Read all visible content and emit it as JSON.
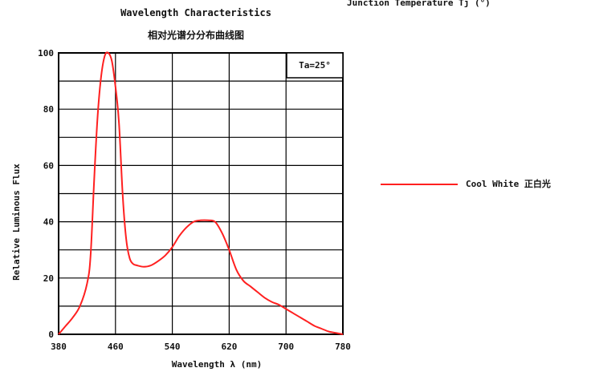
{
  "header_fragment": "Junction Temperature Tj (°)",
  "chart_data": {
    "type": "line",
    "title": "Wavelength Characteristics",
    "subtitle": "相对光谱分分布曲线图",
    "xlabel": "Wavelength λ (nm)",
    "ylabel": "Relative Luminous Flux",
    "x_tick_labels": [
      "380",
      "460",
      "540",
      "620",
      "700",
      "780"
    ],
    "y_ticks": [
      0,
      20,
      40,
      60,
      80,
      100
    ],
    "y_tick_labels": [
      "0",
      "20",
      "40",
      "60",
      "80",
      "100"
    ],
    "xlim": [
      380,
      780
    ],
    "ylim": [
      0,
      100
    ],
    "grid": true,
    "annotation": "Ta=25°",
    "legend_position": "right",
    "series": [
      {
        "name": "Cool White 正白光",
        "color": "#ff2020",
        "x": [
          380,
          390,
          400,
          410,
          420,
          425,
          430,
          435,
          440,
          445,
          450,
          455,
          460,
          465,
          470,
          475,
          480,
          485,
          490,
          500,
          510,
          520,
          530,
          540,
          550,
          560,
          570,
          580,
          590,
          600,
          610,
          620,
          630,
          640,
          650,
          660,
          670,
          680,
          690,
          700,
          710,
          720,
          730,
          740,
          750,
          760,
          770,
          780
        ],
        "y": [
          0,
          3,
          6,
          10,
          18,
          28,
          55,
          78,
          92,
          99,
          100,
          97,
          88,
          75,
          50,
          34,
          27,
          25,
          24.5,
          24,
          24.5,
          26,
          28,
          31,
          35,
          38,
          40,
          40.5,
          40.5,
          40,
          36,
          30,
          23,
          19,
          17,
          15,
          13,
          11.5,
          10.5,
          9,
          7.5,
          6,
          4.5,
          3,
          2,
          1,
          0.5,
          0
        ]
      }
    ]
  }
}
